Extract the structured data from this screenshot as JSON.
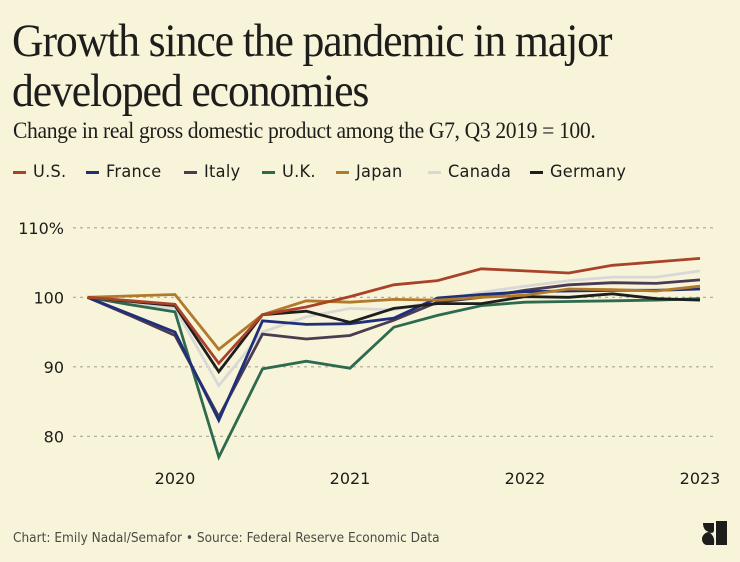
{
  "header": {
    "title": "Growth since the pandemic in major developed economies",
    "subtitle": "Change in real gross domestic product among the G7, Q3 2019 = 100."
  },
  "legend": [
    {
      "label": "U.S.",
      "color": "#a8432a"
    },
    {
      "label": "France",
      "color": "#1f2f7a"
    },
    {
      "label": "Italy",
      "color": "#4a3b52"
    },
    {
      "label": "U.K.",
      "color": "#2e6b4e"
    },
    {
      "label": "Japan",
      "color": "#b07a2a"
    },
    {
      "label": "Canada",
      "color": "#d8d8d6"
    },
    {
      "label": "Germany",
      "color": "#1e1e1e"
    }
  ],
  "footer": {
    "credit": "Chart: Emily Nadal/Semafor • Source: Federal Reserve Economic Data",
    "logo_icon": "semafor-logo-icon"
  },
  "chart_data": {
    "type": "line",
    "title": "Growth since the pandemic in major developed economies",
    "subtitle": "Change in real gross domestic product among the G7, Q3 2019 = 100.",
    "xlabel": "",
    "ylabel": "",
    "x": [
      "Q3 2019",
      "Q4 2019",
      "Q1 2020",
      "Q2 2020",
      "Q3 2020",
      "Q4 2020",
      "Q1 2021",
      "Q2 2021",
      "Q3 2021",
      "Q4 2021",
      "Q1 2022",
      "Q2 2022",
      "Q3 2022",
      "Q4 2022",
      "Q1 2023"
    ],
    "x_ticks": [
      {
        "label": "2020",
        "at": "Q1 2020"
      },
      {
        "label": "2021",
        "at": "Q1 2021"
      },
      {
        "label": "2022",
        "at": "Q1 2022"
      },
      {
        "label": "2023",
        "at": "Q1 2023"
      }
    ],
    "y_ticks": [
      {
        "value": 110,
        "label": "110%"
      },
      {
        "value": 100,
        "label": "100"
      },
      {
        "value": 90,
        "label": "90"
      },
      {
        "value": 80,
        "label": "80"
      }
    ],
    "ylim": [
      77,
      111
    ],
    "grid": true,
    "legend_position": "top-left",
    "series": [
      {
        "name": "U.S.",
        "color": "#a8432a",
        "values": [
          100,
          99.5,
          99.0,
          90.5,
          97.5,
          98.6,
          100.1,
          101.8,
          102.4,
          104.1,
          103.8,
          103.5,
          104.6,
          105.1,
          105.6
        ]
      },
      {
        "name": "France",
        "color": "#1f2f7a",
        "values": [
          100,
          97.5,
          95.0,
          82.3,
          96.6,
          96.1,
          96.2,
          97.0,
          99.9,
          100.4,
          100.8,
          100.9,
          101.0,
          101.0,
          101.2
        ]
      },
      {
        "name": "Italy",
        "color": "#4a3b52",
        "values": [
          100,
          97.3,
          94.5,
          82.8,
          94.7,
          94.0,
          94.5,
          96.7,
          99.3,
          100.0,
          101.0,
          101.8,
          102.1,
          102.0,
          102.5
        ]
      },
      {
        "name": "U.K.",
        "color": "#2e6b4e",
        "values": [
          100,
          98.9,
          97.9,
          77.0,
          89.7,
          90.8,
          89.8,
          95.7,
          97.4,
          98.8,
          99.3,
          99.4,
          99.5,
          99.6,
          99.8
        ]
      },
      {
        "name": "Japan",
        "color": "#b07a2a",
        "values": [
          100,
          100.2,
          100.4,
          92.5,
          97.5,
          99.5,
          99.3,
          99.7,
          99.6,
          100.0,
          100.3,
          101.2,
          101.1,
          100.9,
          101.6
        ]
      },
      {
        "name": "Canada",
        "color": "#d8d8d6",
        "values": [
          100,
          99.2,
          98.4,
          87.3,
          95.0,
          97.2,
          98.4,
          98.2,
          99.5,
          100.7,
          101.6,
          102.4,
          102.9,
          102.9,
          103.8
        ]
      },
      {
        "name": "Germany",
        "color": "#1e1e1e",
        "values": [
          100,
          99.4,
          98.8,
          89.3,
          97.5,
          98.0,
          96.4,
          98.4,
          99.1,
          99.1,
          100.1,
          100.0,
          100.5,
          99.8,
          99.6
        ]
      }
    ]
  }
}
